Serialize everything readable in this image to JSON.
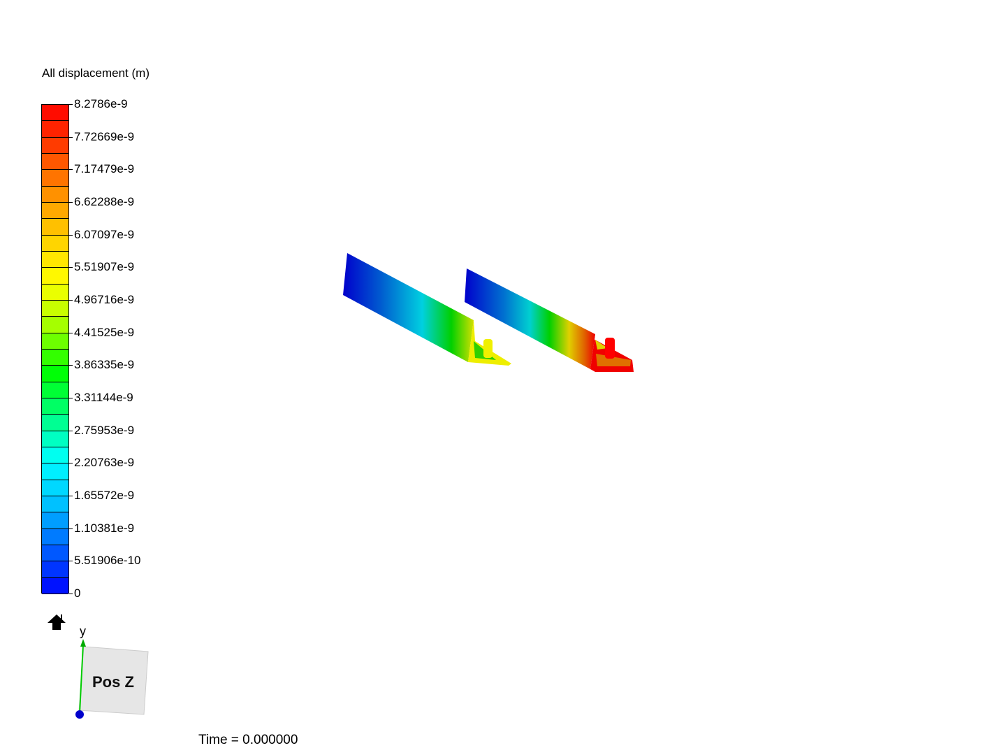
{
  "legend": {
    "title": "All displacement (m)",
    "ticks": [
      "8.2786e-9",
      "7.72669e-9",
      "7.17479e-9",
      "6.62288e-9",
      "6.07097e-9",
      "5.51907e-9",
      "4.96716e-9",
      "4.41525e-9",
      "3.86335e-9",
      "3.31144e-9",
      "2.75953e-9",
      "2.20763e-9",
      "1.65572e-9",
      "1.10381e-9",
      "5.51906e-10",
      "0"
    ],
    "min": 0,
    "max": 8.2786e-09,
    "colormap": [
      "#0000ff",
      "#0060ff",
      "#00c0ff",
      "#00ffff",
      "#00ff80",
      "#00ff00",
      "#a0ff00",
      "#ffff00",
      "#ffd000",
      "#ff9000",
      "#ff4000",
      "#ff0000"
    ]
  },
  "orientation": {
    "label": "Pos Z",
    "axis_y": "y",
    "axis_y_color": "#00cc00",
    "origin_color": "#0000cc"
  },
  "home_icon": "home-icon",
  "time_label": "Time = 0.000000"
}
